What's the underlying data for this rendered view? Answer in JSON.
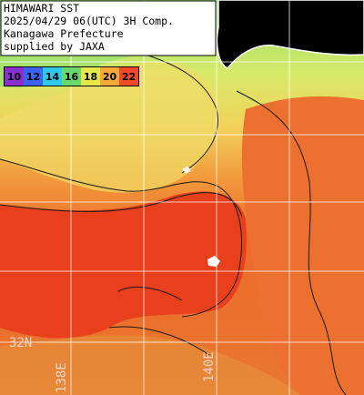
{
  "header": {
    "lines": [
      "HIMAWARI SST",
      "2025/04/29 06(UTC) 3H Comp.",
      "Kanagawa Prefecture",
      "supplied by JAXA"
    ]
  },
  "legend": {
    "items": [
      {
        "label": 10,
        "color": "#8a2fd0"
      },
      {
        "label": 12,
        "color": "#3a64f0"
      },
      {
        "label": 14,
        "color": "#2ec8e8"
      },
      {
        "label": 16,
        "color": "#6ad86a"
      },
      {
        "label": 18,
        "color": "#e6e84a"
      },
      {
        "label": 20,
        "color": "#f4a838"
      },
      {
        "label": 22,
        "color": "#f04a2a"
      }
    ]
  },
  "grid_labels": {
    "lat": [
      "32N"
    ],
    "lon": [
      "138E",
      "140E"
    ]
  }
}
